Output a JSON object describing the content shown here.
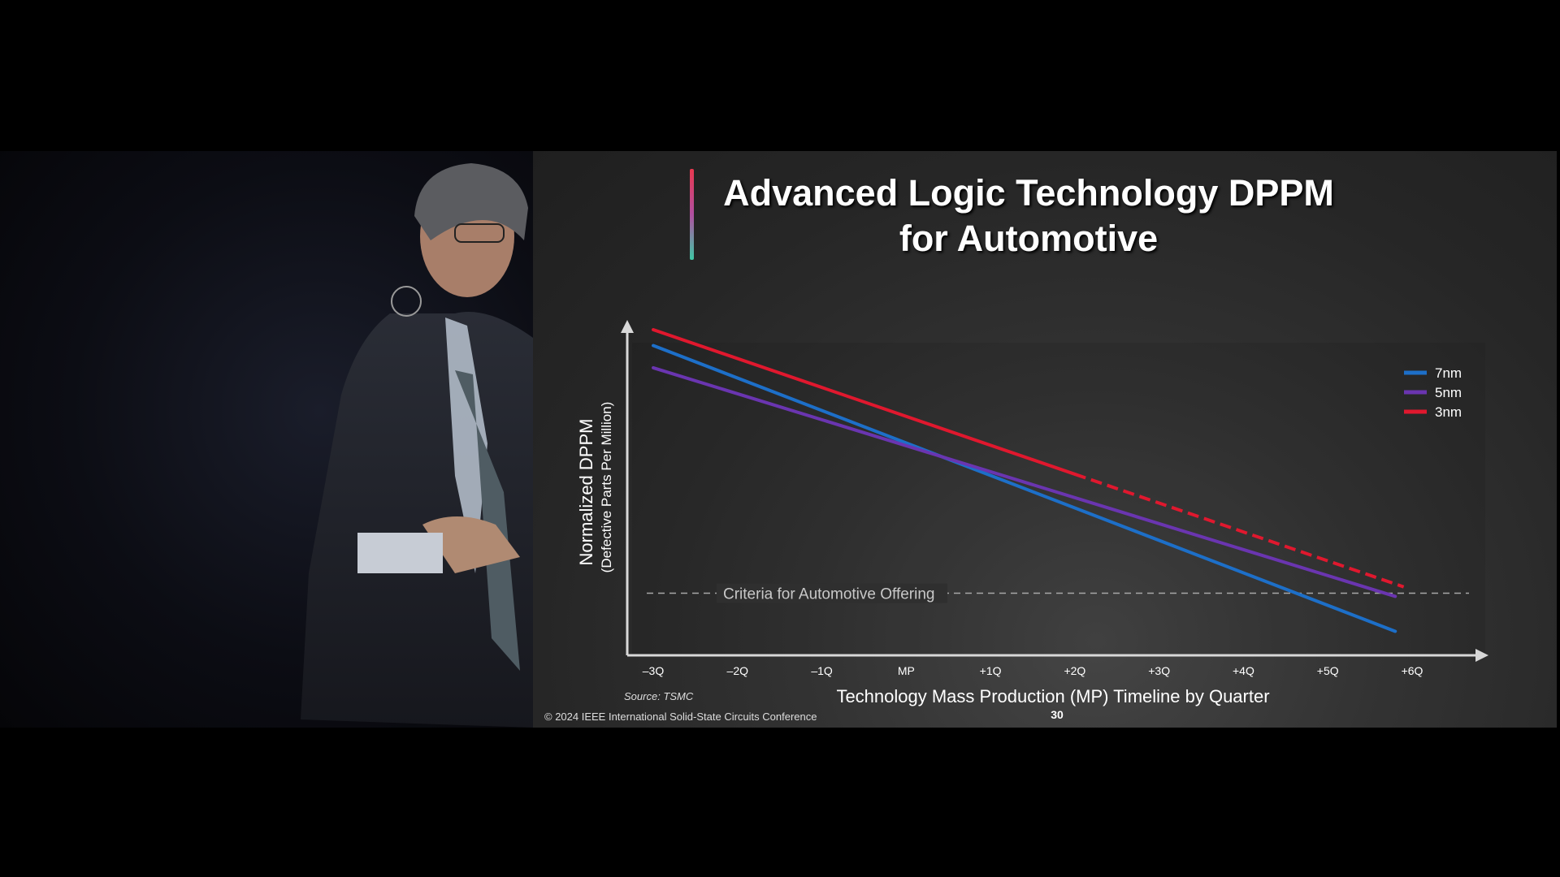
{
  "slide": {
    "title_line1": "Advanced Logic Technology DPPM",
    "title_line2": "for Automotive",
    "source": "Source: TSMC",
    "copyright": "© 2024 IEEE International Solid-State Circuits Conference",
    "page_number": "30"
  },
  "chart_data": {
    "type": "line",
    "ylabel": "Normalized DPPM",
    "ylabel_sub": "(Defective Parts Per Million)",
    "xlabel": "Technology Mass Production (MP) Timeline by Quarter",
    "x_ticks": [
      "–3Q",
      "–2Q",
      "–1Q",
      "MP",
      "+1Q",
      "+2Q",
      "+3Q",
      "+4Q",
      "+5Q",
      "+6Q"
    ],
    "x_range": [
      -3,
      6
    ],
    "threshold": {
      "label": "Criteria for Automotive Offering",
      "value": 0.17,
      "style": "dashed",
      "color": "#a8a8a8"
    },
    "legend_position": "top-right",
    "series": [
      {
        "name": "7nm",
        "color": "#1d6fc8",
        "x": [
          -3,
          5.8
        ],
        "y": [
          0.95,
          0.05
        ],
        "solid_until": 5.8
      },
      {
        "name": "5nm",
        "color": "#6a35b0",
        "x": [
          -3,
          5.8
        ],
        "y": [
          0.88,
          0.16
        ],
        "solid_until": 5.8
      },
      {
        "name": "3nm",
        "color": "#e0182e",
        "x": [
          -3,
          5.9
        ],
        "y": [
          1.0,
          0.19
        ],
        "solid_until": 2.0
      }
    ]
  }
}
